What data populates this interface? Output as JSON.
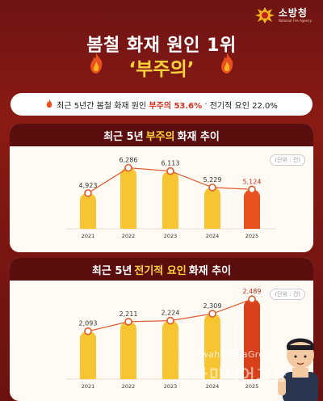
{
  "header": {
    "agency_name": "소방청",
    "agency_sub": "National Fire Agency",
    "title": "봄철 화재 원인 1위",
    "subtitle": "‘부주의’"
  },
  "summary": {
    "prefix": "최근 5년간 봄철 화재 원인",
    "item1": "부주의 53.6%",
    "sep": "·",
    "item2": "전기적 요인 22.0%"
  },
  "panel1": {
    "title_pre": "최근 5년",
    "title_hl": "부주의",
    "title_post": "화재 추이",
    "unit": "(단위 : 건)"
  },
  "panel2": {
    "title_pre": "최근 5년",
    "title_hl": "전기적 요인",
    "title_post": "화재 추이",
    "unit": "(단위 : 건)"
  },
  "watermark": {
    "line1": "DamwahMediaGroup",
    "line2": "담와미디어그룹"
  },
  "colors": {
    "bar": "#f7c532",
    "bar_highlight_1": "#e8501e",
    "bar_highlight_2": "#d8401a",
    "line": "#e05a2e",
    "background": "#7a1612"
  },
  "chart_data": [
    {
      "type": "bar",
      "title": "최근 5년 부주의 화재 추이",
      "categories": [
        "2021",
        "2022",
        "2023",
        "2024",
        "2025"
      ],
      "values": [
        4923,
        6286,
        6113,
        5229,
        5124
      ],
      "labels": [
        "4,923",
        "6,286",
        "6,113",
        "5,229",
        "5,124"
      ],
      "ylabel": "(단위 : 건)",
      "overlay_line": true,
      "highlight_index": 4
    },
    {
      "type": "bar",
      "title": "최근 5년 전기적 요인 화재 추이",
      "categories": [
        "2021",
        "2022",
        "2023",
        "2024",
        "2025"
      ],
      "values": [
        2093,
        2211,
        2224,
        2309,
        2489
      ],
      "labels": [
        "2,093",
        "2,211",
        "2,224",
        "2,309",
        "2,489"
      ],
      "ylabel": "(단위 : 건)",
      "overlay_line": true,
      "highlight_index": 4
    }
  ]
}
